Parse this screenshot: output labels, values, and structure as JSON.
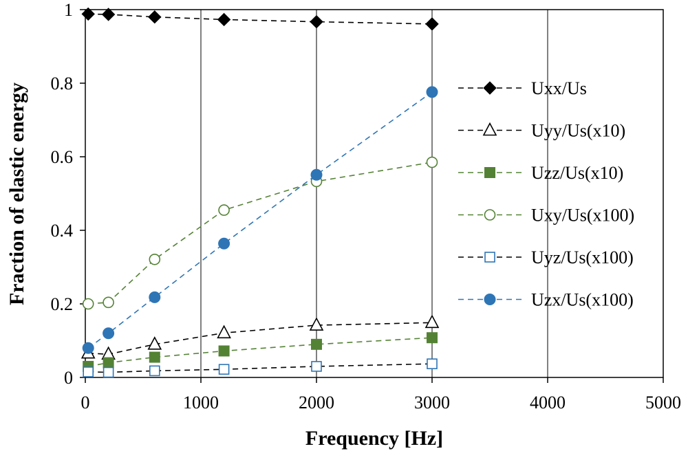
{
  "chart_data": {
    "type": "line",
    "title": "",
    "xlabel": "Frequency [Hz]",
    "ylabel": "Fraction of elastic energy",
    "xlim": [
      0,
      5000
    ],
    "ylim": [
      0,
      1
    ],
    "xticks": [
      0,
      1000,
      2000,
      3000,
      4000,
      5000
    ],
    "xtick_labels": [
      "0",
      "1000",
      "2000",
      "3000",
      "4000",
      "5000"
    ],
    "yticks": [
      0,
      0.2,
      0.4,
      0.6,
      0.8,
      1
    ],
    "ytick_labels": [
      "0",
      "0.2",
      "0.4",
      "0.6",
      "0.8",
      "1"
    ],
    "grid": "vertical",
    "legend_position": "right",
    "x": [
      25,
      200,
      600,
      1200,
      2000,
      3000
    ],
    "series": [
      {
        "name": "Uxx/Us",
        "marker": "diamond-filled",
        "color": "#000000",
        "line_color": "#000000",
        "values": [
          0.988,
          0.987,
          0.98,
          0.973,
          0.967,
          0.961
        ]
      },
      {
        "name": "Uyy/Us(x10)",
        "marker": "triangle-open",
        "color": "#000000",
        "line_color": "#000000",
        "values": [
          0.066,
          0.063,
          0.09,
          0.121,
          0.142,
          0.149
        ]
      },
      {
        "name": "Uzz/Us(x10)",
        "marker": "square-filled",
        "color": "#548235",
        "line_color": "#548235",
        "values": [
          0.03,
          0.04,
          0.055,
          0.072,
          0.09,
          0.108
        ]
      },
      {
        "name": "Uxy/Us(x100)",
        "marker": "circle-open",
        "color": "#548235",
        "line_color": "#548235",
        "values": [
          0.2,
          0.204,
          0.321,
          0.455,
          0.533,
          0.585
        ]
      },
      {
        "name": "Uyz/Us(x100)",
        "marker": "square-open",
        "color": "#2e75b6",
        "line_color": "#000000",
        "values": [
          0.015,
          0.014,
          0.018,
          0.022,
          0.03,
          0.037
        ]
      },
      {
        "name": "Uzx/Us(x100)",
        "marker": "circle-filled",
        "color": "#2e75b6",
        "line_color": "#2e75b6",
        "values": [
          0.08,
          0.12,
          0.218,
          0.364,
          0.551,
          0.776
        ]
      }
    ]
  }
}
